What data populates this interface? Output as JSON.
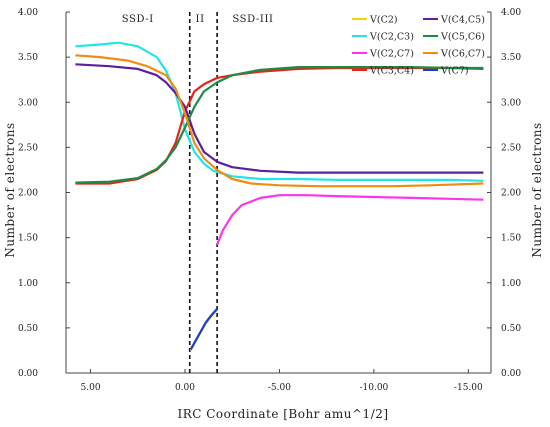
{
  "chart_data": {
    "type": "line",
    "title": "",
    "xlabel": "IRC Coordinate [Bohr amu^1/2]",
    "ylabel_left": "Number of electrons",
    "ylabel_right": "Number of electrons",
    "xlim": [
      6.3,
      -16.2
    ],
    "ylim": [
      0,
      4
    ],
    "x_ticks": [
      {
        "value": 5,
        "label": "5.00"
      },
      {
        "value": 0,
        "label": "0.00"
      },
      {
        "value": -5,
        "label": "-5.00"
      },
      {
        "value": -10,
        "label": "-10.00"
      },
      {
        "value": -15,
        "label": "-15.00"
      }
    ],
    "y_ticks": [
      "0.00",
      "0.50",
      "1.00",
      "1.50",
      "2.00",
      "2.50",
      "3.00",
      "3.50",
      "4.00"
    ],
    "regions": [
      {
        "label": "SSD-I",
        "at": 2.5
      },
      {
        "label": "II",
        "at": -0.8
      },
      {
        "label": "SSD-III",
        "at": -3.6
      }
    ],
    "boundaries": [
      -0.25,
      -1.7
    ],
    "legend_position": "top-right",
    "series": [
      {
        "name": "V(C2)",
        "color": "#f2d600",
        "x": [
          -0.3,
          -0.7,
          -1.1,
          -1.4,
          -1.7
        ],
        "y": [
          0.25,
          0.4,
          0.55,
          0.63,
          0.7
        ]
      },
      {
        "name": "V(C2,C3)",
        "color": "#22e5e8",
        "x": [
          5.8,
          4.5,
          3.5,
          2.5,
          1.5,
          1.0,
          0.5,
          0.0,
          -0.5,
          -1.0,
          -1.5,
          -2.5,
          -4.0,
          -6.0,
          -8.0,
          -10.0,
          -12.0,
          -14.0,
          -15.8
        ],
        "y": [
          3.62,
          3.64,
          3.66,
          3.62,
          3.5,
          3.35,
          3.1,
          2.7,
          2.45,
          2.32,
          2.24,
          2.18,
          2.15,
          2.15,
          2.14,
          2.14,
          2.14,
          2.14,
          2.13
        ]
      },
      {
        "name": "V(C2,C7)",
        "color": "#ff33ee",
        "x": [
          -1.7,
          -2.0,
          -2.5,
          -3.0,
          -4.0,
          -5.0,
          -6.5,
          -8.0,
          -10.0,
          -12.0,
          -14.0,
          -15.8
        ],
        "y": [
          1.42,
          1.58,
          1.75,
          1.86,
          1.94,
          1.97,
          1.97,
          1.96,
          1.95,
          1.94,
          1.93,
          1.92
        ]
      },
      {
        "name": "V(C3,C4)",
        "color": "#e8231a",
        "x": [
          5.8,
          4.0,
          2.5,
          1.5,
          1.0,
          0.5,
          0.0,
          -0.5,
          -1.0,
          -1.7,
          -2.5,
          -4.0,
          -6.0,
          -8.0,
          -10.0,
          -12.0,
          -14.0,
          -15.8
        ],
        "y": [
          2.1,
          2.1,
          2.15,
          2.25,
          2.35,
          2.55,
          2.9,
          3.12,
          3.2,
          3.27,
          3.3,
          3.34,
          3.37,
          3.38,
          3.38,
          3.38,
          3.38,
          3.37
        ]
      },
      {
        "name": "V(C4,C5)",
        "color": "#5b1fa0",
        "x": [
          5.8,
          4.0,
          2.5,
          1.5,
          1.0,
          0.5,
          0.0,
          -0.5,
          -1.0,
          -1.7,
          -2.5,
          -4.0,
          -6.0,
          -8.0,
          -10.0,
          -12.0,
          -14.0,
          -15.8
        ],
        "y": [
          3.42,
          3.4,
          3.37,
          3.3,
          3.22,
          3.1,
          2.95,
          2.65,
          2.45,
          2.34,
          2.28,
          2.24,
          2.22,
          2.22,
          2.22,
          2.22,
          2.22,
          2.22
        ]
      },
      {
        "name": "V(C5,C6)",
        "color": "#1f8a45",
        "x": [
          5.8,
          4.0,
          2.5,
          1.5,
          1.0,
          0.5,
          0.0,
          -0.5,
          -1.0,
          -1.7,
          -2.5,
          -4.0,
          -6.0,
          -8.0,
          -10.0,
          -12.0,
          -14.0,
          -15.8
        ],
        "y": [
          2.11,
          2.12,
          2.16,
          2.26,
          2.36,
          2.5,
          2.72,
          2.95,
          3.12,
          3.22,
          3.3,
          3.36,
          3.39,
          3.39,
          3.39,
          3.39,
          3.38,
          3.38
        ]
      },
      {
        "name": "V(C6,C7)",
        "color": "#f08c12",
        "x": [
          5.8,
          4.5,
          3.0,
          2.0,
          1.0,
          0.5,
          0.0,
          -0.5,
          -1.0,
          -1.7,
          -2.5,
          -3.5,
          -5.0,
          -7.0,
          -9.0,
          -11.0,
          -13.0,
          -15.8
        ],
        "y": [
          3.52,
          3.5,
          3.46,
          3.4,
          3.3,
          3.15,
          2.88,
          2.55,
          2.38,
          2.25,
          2.15,
          2.1,
          2.08,
          2.07,
          2.07,
          2.07,
          2.08,
          2.1
        ]
      },
      {
        "name": "V(C7)",
        "color": "#1a3ccc",
        "x": [
          -0.3,
          -0.7,
          -1.1,
          -1.4,
          -1.7
        ],
        "y": [
          0.26,
          0.41,
          0.56,
          0.64,
          0.71
        ]
      }
    ]
  }
}
